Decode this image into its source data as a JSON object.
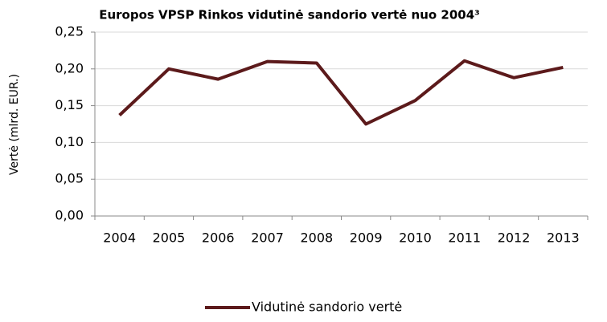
{
  "chart_data": {
    "type": "line",
    "title": "Europos VPSP Rinkos vidutinė sandorio vertė nuo 2004³",
    "y_label": "Vertė (mlrd. EUR.)",
    "categories": [
      "2004",
      "2005",
      "2006",
      "2007",
      "2008",
      "2009",
      "2010",
      "2011",
      "2012",
      "2013"
    ],
    "series": [
      {
        "name": "Vidutinė sandorio vertė",
        "color": "#5c1a1b",
        "values": [
          0.137,
          0.2,
          0.186,
          0.21,
          0.208,
          0.125,
          0.157,
          0.211,
          0.188,
          0.202
        ]
      }
    ],
    "ylim": [
      0,
      0.25
    ],
    "yticks": [
      {
        "value": 0,
        "label": "0,00"
      },
      {
        "value": 0.05,
        "label": "0,05"
      },
      {
        "value": 0.1,
        "label": "0,10"
      },
      {
        "value": 0.15,
        "label": "0,15"
      },
      {
        "value": 0.2,
        "label": "0,20"
      },
      {
        "value": 0.25,
        "label": "0,25"
      }
    ],
    "grid": true,
    "legend": "bottom"
  }
}
